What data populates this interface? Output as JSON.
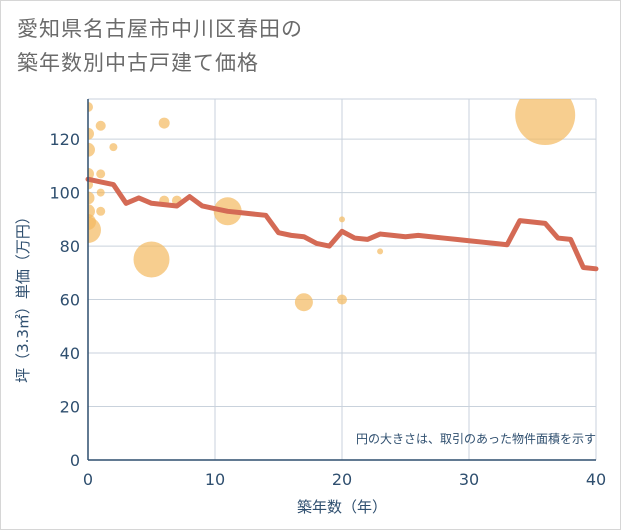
{
  "title_lines": [
    "愛知県名古屋市中川区春田の",
    "築年数別中古戸建て価格"
  ],
  "chart_data": {
    "type": "scatter+line",
    "title": "愛知県名古屋市中川区春田の築年数別中古戸建て価格",
    "xlabel": "築年数（年）",
    "ylabel": "坪（3.3㎡）単価（万円）",
    "xlim": [
      0,
      40
    ],
    "ylim": [
      0,
      135
    ],
    "xticks": [
      0,
      10,
      20,
      30,
      40
    ],
    "yticks": [
      0,
      20,
      40,
      60,
      80,
      100,
      120
    ],
    "grid": true,
    "annotation": "円の大きさは、取引のあった物件面積を示す",
    "colors": {
      "bubble": "#f3b95f",
      "line": "#d46a55",
      "axis": "#2f4f6f",
      "grid": "#c9d2dc"
    },
    "bubbles": [
      {
        "x": 0,
        "y": 132,
        "size": 10
      },
      {
        "x": 0,
        "y": 122,
        "size": 12
      },
      {
        "x": 0,
        "y": 116,
        "size": 14
      },
      {
        "x": 0,
        "y": 107,
        "size": 12
      },
      {
        "x": 0,
        "y": 103,
        "size": 10
      },
      {
        "x": 0,
        "y": 98,
        "size": 13
      },
      {
        "x": 0,
        "y": 93,
        "size": 14
      },
      {
        "x": 0,
        "y": 89,
        "size": 16
      },
      {
        "x": 0,
        "y": 86,
        "size": 26
      },
      {
        "x": 1,
        "y": 125,
        "size": 10
      },
      {
        "x": 1,
        "y": 107,
        "size": 9
      },
      {
        "x": 1,
        "y": 100,
        "size": 8
      },
      {
        "x": 1,
        "y": 93,
        "size": 9
      },
      {
        "x": 2,
        "y": 117,
        "size": 8
      },
      {
        "x": 5,
        "y": 75,
        "size": 36
      },
      {
        "x": 6,
        "y": 126,
        "size": 11
      },
      {
        "x": 6,
        "y": 97,
        "size": 10
      },
      {
        "x": 7,
        "y": 97,
        "size": 10
      },
      {
        "x": 11,
        "y": 93,
        "size": 28
      },
      {
        "x": 17,
        "y": 59,
        "size": 18
      },
      {
        "x": 20,
        "y": 90,
        "size": 6
      },
      {
        "x": 20,
        "y": 60,
        "size": 10
      },
      {
        "x": 23,
        "y": 78,
        "size": 6
      },
      {
        "x": 36,
        "y": 129,
        "size": 60
      }
    ],
    "line": {
      "x": [
        0,
        1,
        2,
        3,
        4,
        5,
        6,
        7,
        8,
        9,
        10,
        11,
        12,
        13,
        14,
        15,
        16,
        17,
        18,
        19,
        20,
        21,
        22,
        23,
        24,
        25,
        26,
        27,
        28,
        29,
        30,
        31,
        32,
        33,
        34,
        35,
        36,
        37,
        38,
        39,
        40
      ],
      "y": [
        105,
        104,
        103,
        96,
        98,
        96,
        95.5,
        95,
        98.5,
        95,
        94,
        93,
        92.5,
        92,
        91.5,
        85,
        84,
        83.5,
        81,
        80,
        85.5,
        83,
        82.5,
        84.5,
        84,
        83.5,
        84,
        83.5,
        83,
        82.5,
        82,
        81.5,
        81,
        80.5,
        89.5,
        89,
        88.5,
        83,
        82.5,
        72,
        71.5
      ]
    }
  }
}
